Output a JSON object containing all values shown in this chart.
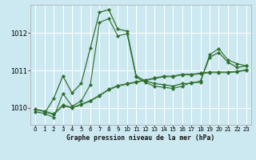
{
  "background_color": "#cce8f0",
  "grid_color": "#ffffff",
  "line_color": "#2d6e2d",
  "title": "Graphe pression niveau de la mer (hPa)",
  "xlim": [
    -0.5,
    23.5
  ],
  "ylim": [
    1009.55,
    1012.75
  ],
  "yticks": [
    1010,
    1011,
    1012
  ],
  "xticks": [
    0,
    1,
    2,
    3,
    4,
    5,
    6,
    7,
    8,
    9,
    10,
    11,
    12,
    13,
    14,
    15,
    16,
    17,
    18,
    19,
    20,
    21,
    22,
    23
  ],
  "series1_x": [
    0,
    1,
    2,
    3,
    4,
    5,
    6,
    7,
    8,
    9,
    10,
    11,
    12,
    13,
    14,
    15,
    16,
    17,
    18,
    19,
    20,
    21,
    22,
    23
  ],
  "series1_y": [
    1009.9,
    1009.85,
    1010.25,
    1010.85,
    1010.4,
    1010.65,
    1011.6,
    1012.55,
    1012.62,
    1012.1,
    1012.05,
    1010.85,
    1010.72,
    1010.65,
    1010.62,
    1010.58,
    1010.65,
    1010.65,
    1010.72,
    1011.35,
    1011.48,
    1011.22,
    1011.08,
    1011.12
  ],
  "series2_x": [
    1,
    2,
    3,
    4,
    5,
    6,
    7,
    8,
    9,
    10,
    11,
    12,
    13,
    14,
    15,
    16,
    17,
    18,
    19,
    20,
    21,
    22,
    23
  ],
  "series2_y": [
    1009.85,
    1009.75,
    1010.38,
    1010.05,
    1010.18,
    1010.62,
    1012.28,
    1012.38,
    1011.92,
    1011.98,
    1010.82,
    1010.68,
    1010.58,
    1010.55,
    1010.52,
    1010.58,
    1010.68,
    1010.68,
    1011.42,
    1011.58,
    1011.28,
    1011.18,
    1011.12
  ],
  "series3_x": [
    0,
    1,
    2,
    3,
    4,
    5,
    6,
    7,
    8,
    9,
    10,
    11,
    12,
    13,
    14,
    15,
    16,
    17,
    18,
    19,
    20,
    21,
    22,
    23
  ],
  "series3_y": [
    1009.95,
    1009.9,
    1009.82,
    1010.05,
    1010.0,
    1010.08,
    1010.18,
    1010.32,
    1010.48,
    1010.58,
    1010.63,
    1010.68,
    1010.73,
    1010.78,
    1010.83,
    1010.83,
    1010.88,
    1010.88,
    1010.91,
    1010.94,
    1010.94,
    1010.94,
    1010.96,
    1011.0
  ],
  "series4_x": [
    0,
    1,
    2,
    3,
    4,
    5,
    6,
    7,
    8,
    9,
    10,
    11,
    12,
    13,
    14,
    15,
    16,
    17,
    18,
    19,
    20,
    21,
    22,
    23
  ],
  "series4_y": [
    1009.97,
    1009.92,
    1009.84,
    1010.08,
    1010.02,
    1010.1,
    1010.2,
    1010.34,
    1010.5,
    1010.6,
    1010.65,
    1010.7,
    1010.75,
    1010.8,
    1010.85,
    1010.85,
    1010.9,
    1010.9,
    1010.93,
    1010.96,
    1010.96,
    1010.96,
    1010.98,
    1011.02
  ]
}
